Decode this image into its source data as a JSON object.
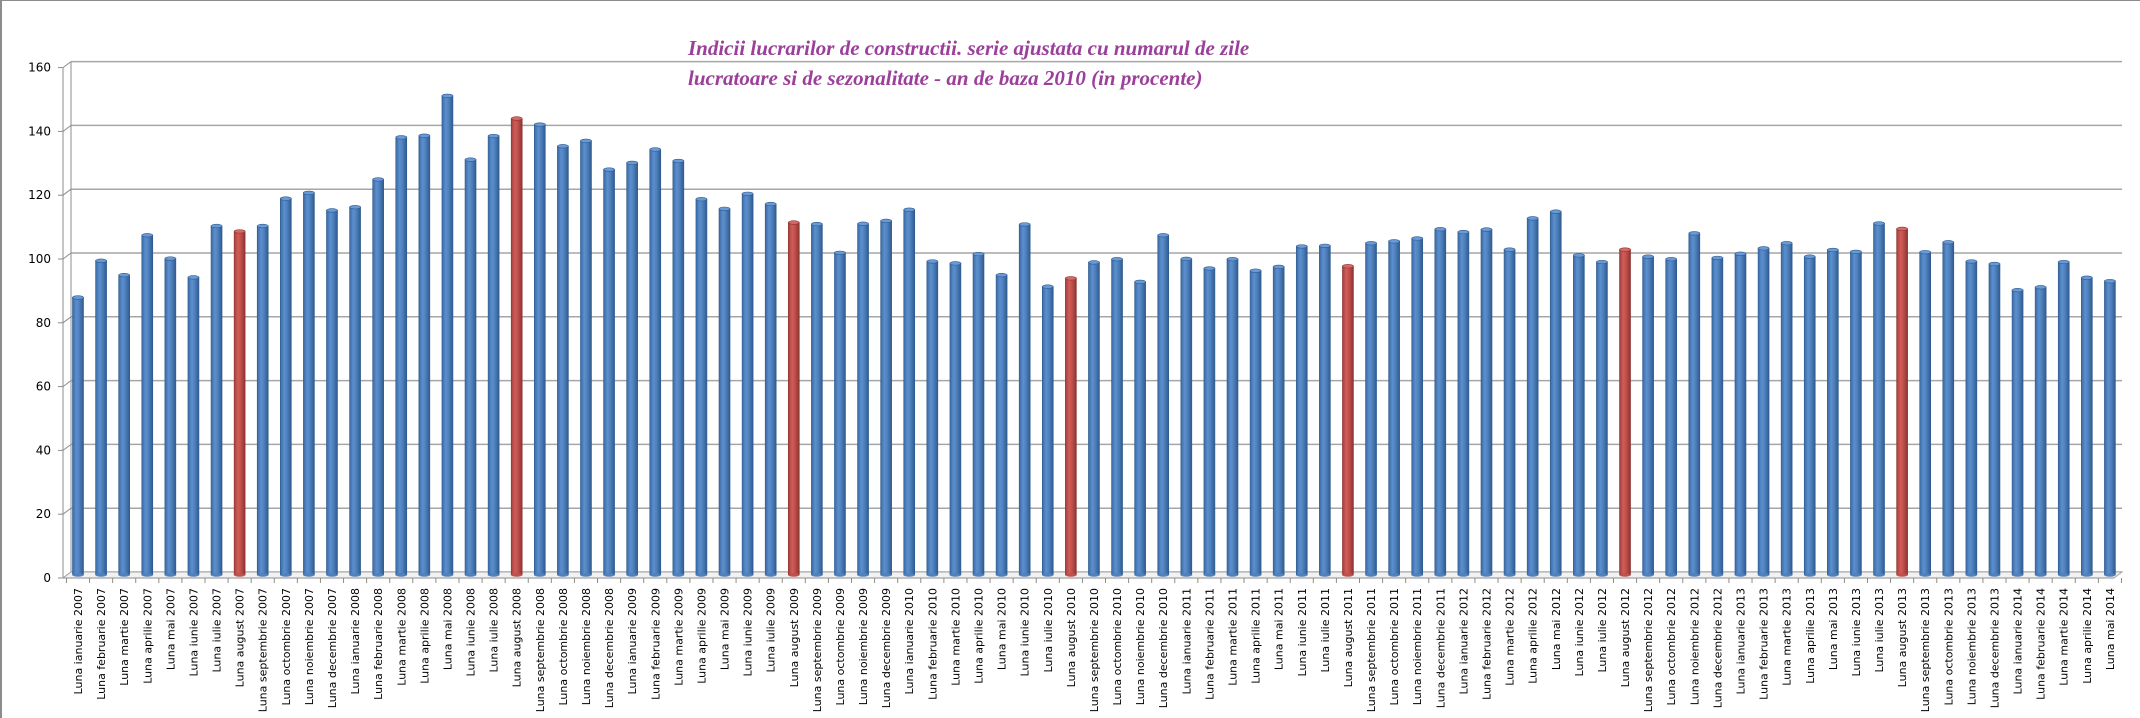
{
  "chart_data": {
    "type": "bar",
    "style": "3d-cylinder-columns",
    "title": "Indicii lucrarilor de constructii. serie ajustata cu numarul de zile lucratoare si de sezonalitate - an de baza 2010 (in procente)",
    "title_lines": [
      "Indicii lucrarilor de constructii. serie ajustata cu numarul de zile",
      "lucratoare si de sezonalitate - an de baza 2010 (in procente)"
    ],
    "xlabel": "",
    "ylabel": "",
    "ylim": [
      0,
      160
    ],
    "yticks": [
      0,
      20,
      40,
      60,
      80,
      100,
      120,
      140,
      160
    ],
    "grid": true,
    "legend": "none",
    "colors": {
      "default": "#4F81BD",
      "highlight": "#C0504D",
      "title": "#9B3F9B",
      "grid": "#A6A6A6"
    },
    "highlight_rule": "August of each year shown in red",
    "categories": [
      "Luna ianuarie 2007",
      "Luna februarie 2007",
      "Luna martie 2007",
      "Luna aprilie 2007",
      "Luna mai 2007",
      "Luna iunie 2007",
      "Luna iulie 2007",
      "Luna august 2007",
      "Luna septembrie 2007",
      "Luna octombrie 2007",
      "Luna noiembrie 2007",
      "Luna decembrie 2007",
      "Luna ianuarie 2008",
      "Luna februarie 2008",
      "Luna martie 2008",
      "Luna aprilie 2008",
      "Luna mai 2008",
      "Luna iunie 2008",
      "Luna iulie 2008",
      "Luna august 2008",
      "Luna septembrie 2008",
      "Luna octombrie 2008",
      "Luna noiembrie 2008",
      "Luna decembrie 2008",
      "Luna ianuarie 2009",
      "Luna februarie 2009",
      "Luna martie 2009",
      "Luna aprilie 2009",
      "Luna mai 2009",
      "Luna iunie 2009",
      "Luna iulie 2009",
      "Luna august 2009",
      "Luna septembrie 2009",
      "Luna octombrie 2009",
      "Luna noiembrie 2009",
      "Luna decembrie 2009",
      "Luna ianuarie 2010",
      "Luna februarie 2010",
      "Luna martie 2010",
      "Luna aprilie 2010",
      "Luna mai 2010",
      "Luna iunie 2010",
      "Luna iulie 2010",
      "Luna august 2010",
      "Luna septembrie 2010",
      "Luna octombrie 2010",
      "Luna noiembrie 2010",
      "Luna decembrie 2010",
      "Luna ianuarie 2011",
      "Luna februarie 2011",
      "Luna martie 2011",
      "Luna aprilie 2011",
      "Luna mai 2011",
      "Luna iunie 2011",
      "Luna iulie 2011",
      "Luna august 2011",
      "Luna septembrie 2011",
      "Luna octombrie 2011",
      "Luna noiembrie 2011",
      "Luna decembrie 2011",
      "Luna ianuarie 2012",
      "Luna februarie 2012",
      "Luna martie 2012",
      "Luna aprilie 2012",
      "Luna mai 2012",
      "Luna iunie 2012",
      "Luna iulie 2012",
      "Luna august 2012",
      "Luna septembrie 2012",
      "Luna octombrie 2012",
      "Luna noiembrie 2012",
      "Luna decembrie 2012",
      "Luna ianuarie 2013",
      "Luna februarie 2013",
      "Luna martie 2013",
      "Luna aprilie 2013",
      "Luna mai 2013",
      "Luna iunie 2013",
      "Luna iulie 2013",
      "Luna august 2013",
      "Luna septembrie 2013",
      "Luna octombrie 2013",
      "Luna noiembrie 2013",
      "Luna decembrie 2013",
      "Luna ianuarie 2014",
      "Luna februarie 2014",
      "Luna martie 2014",
      "Luna aprilie 2014",
      "Luna mai 2014"
    ],
    "values": [
      87.0,
      98.5,
      94.0,
      106.5,
      99.2,
      93.3,
      109.4,
      107.7,
      109.4,
      118.0,
      119.8,
      114.3,
      115.3,
      124.0,
      137.2,
      137.7,
      150.2,
      130.2,
      137.6,
      143.1,
      141.2,
      134.4,
      136.1,
      127.1,
      129.2,
      133.4,
      129.8,
      117.8,
      114.8,
      119.5,
      116.3,
      110.5,
      110.0,
      101.0,
      110.1,
      111.0,
      114.5,
      98.3,
      97.7,
      100.6,
      94.0,
      109.9,
      90.4,
      93.0,
      98.0,
      99.0,
      91.9,
      106.5,
      99.1,
      96.1,
      99.0,
      95.4,
      96.6,
      103.0,
      103.2,
      96.8,
      104.0,
      104.6,
      105.5,
      108.4,
      107.5,
      108.3,
      102.0,
      111.8,
      113.9,
      100.2,
      98.1,
      102.0,
      99.8,
      99.0,
      107.1,
      99.4,
      100.7,
      102.4,
      104.0,
      99.8,
      101.9,
      101.3,
      110.2,
      108.5,
      101.2,
      104.3,
      98.3,
      97.5,
      89.3,
      90.2,
      98.1,
      93.2,
      92.1
    ],
    "highlighted": [
      "Luna august 2007",
      "Luna august 2008",
      "Luna august 2009",
      "Luna august 2010",
      "Luna august 2011",
      "Luna august 2012",
      "Luna august 2013"
    ]
  }
}
